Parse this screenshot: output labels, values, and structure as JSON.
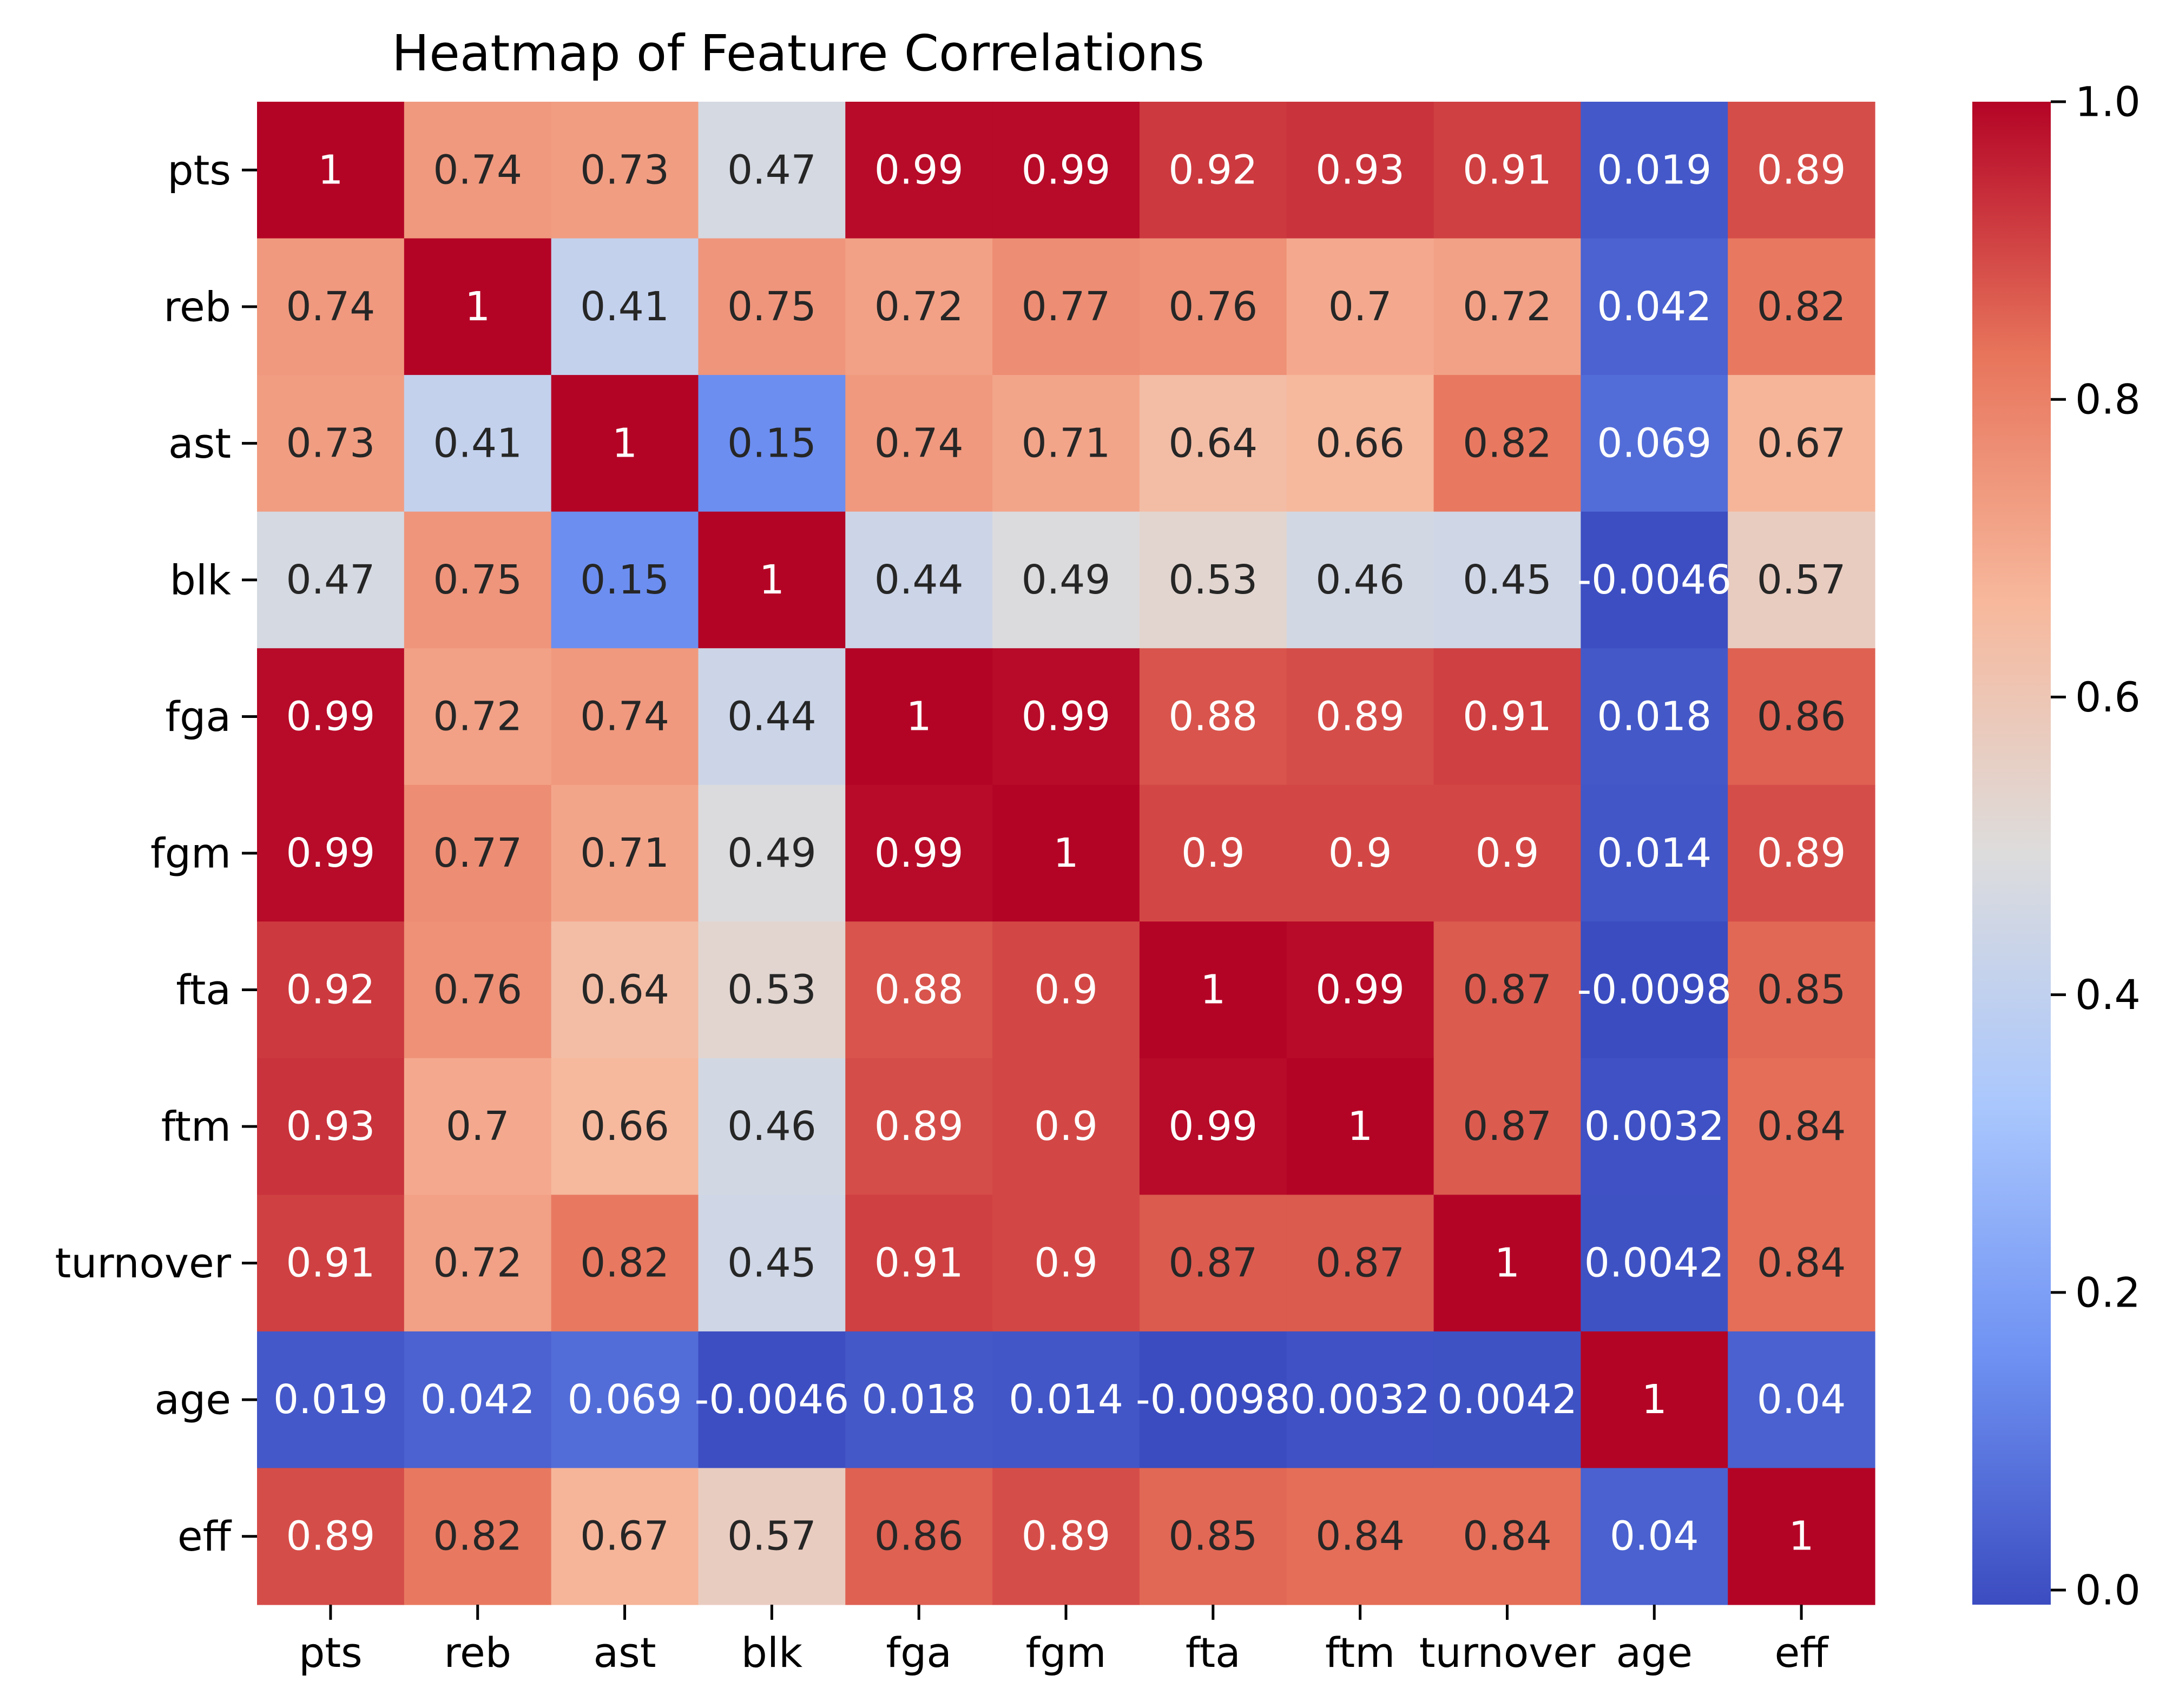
{
  "chart_data": {
    "type": "heatmap",
    "title": "Heatmap of Feature Correlations",
    "xlabel": "",
    "ylabel": "",
    "x_categories": [
      "pts",
      "reb",
      "ast",
      "blk",
      "fga",
      "fgm",
      "fta",
      "ftm",
      "turnover",
      "age",
      "eff"
    ],
    "y_categories": [
      "pts",
      "reb",
      "ast",
      "blk",
      "fga",
      "fgm",
      "fta",
      "ftm",
      "turnover",
      "age",
      "eff"
    ],
    "values": [
      [
        1,
        0.74,
        0.73,
        0.47,
        0.99,
        0.99,
        0.92,
        0.93,
        0.91,
        0.019,
        0.89
      ],
      [
        0.74,
        1,
        0.41,
        0.75,
        0.72,
        0.77,
        0.76,
        0.7,
        0.72,
        0.042,
        0.82
      ],
      [
        0.73,
        0.41,
        1,
        0.15,
        0.74,
        0.71,
        0.64,
        0.66,
        0.82,
        0.069,
        0.67
      ],
      [
        0.47,
        0.75,
        0.15,
        1,
        0.44,
        0.49,
        0.53,
        0.46,
        0.45,
        -0.0046,
        0.57
      ],
      [
        0.99,
        0.72,
        0.74,
        0.44,
        1,
        0.99,
        0.88,
        0.89,
        0.91,
        0.018,
        0.86
      ],
      [
        0.99,
        0.77,
        0.71,
        0.49,
        0.99,
        1,
        0.9,
        0.9,
        0.9,
        0.014,
        0.89
      ],
      [
        0.92,
        0.76,
        0.64,
        0.53,
        0.88,
        0.9,
        1,
        0.99,
        0.87,
        -0.0098,
        0.85
      ],
      [
        0.93,
        0.7,
        0.66,
        0.46,
        0.89,
        0.9,
        0.99,
        1,
        0.87,
        0.0032,
        0.84
      ],
      [
        0.91,
        0.72,
        0.82,
        0.45,
        0.91,
        0.9,
        0.87,
        0.87,
        1,
        0.0042,
        0.84
      ],
      [
        0.019,
        0.042,
        0.069,
        -0.0046,
        0.018,
        0.014,
        -0.0098,
        0.0032,
        0.0042,
        1,
        0.04
      ],
      [
        0.89,
        0.82,
        0.67,
        0.57,
        0.86,
        0.89,
        0.85,
        0.84,
        0.84,
        0.04,
        1
      ]
    ],
    "cell_labels": [
      [
        "1",
        "0.74",
        "0.73",
        "0.47",
        "0.99",
        "0.99",
        "0.92",
        "0.93",
        "0.91",
        "0.019",
        "0.89"
      ],
      [
        "0.74",
        "1",
        "0.41",
        "0.75",
        "0.72",
        "0.77",
        "0.76",
        "0.7",
        "0.72",
        "0.042",
        "0.82"
      ],
      [
        "0.73",
        "0.41",
        "1",
        "0.15",
        "0.74",
        "0.71",
        "0.64",
        "0.66",
        "0.82",
        "0.069",
        "0.67"
      ],
      [
        "0.47",
        "0.75",
        "0.15",
        "1",
        "0.44",
        "0.49",
        "0.53",
        "0.46",
        "0.45",
        "-0.0046",
        "0.57"
      ],
      [
        "0.99",
        "0.72",
        "0.74",
        "0.44",
        "1",
        "0.99",
        "0.88",
        "0.89",
        "0.91",
        "0.018",
        "0.86"
      ],
      [
        "0.99",
        "0.77",
        "0.71",
        "0.49",
        "0.99",
        "1",
        "0.9",
        "0.9",
        "0.9",
        "0.014",
        "0.89"
      ],
      [
        "0.92",
        "0.76",
        "0.64",
        "0.53",
        "0.88",
        "0.9",
        "1",
        "0.99",
        "0.87",
        "-0.0098",
        "0.85"
      ],
      [
        "0.93",
        "0.7",
        "0.66",
        "0.46",
        "0.89",
        "0.9",
        "0.99",
        "1",
        "0.87",
        "0.0032",
        "0.84"
      ],
      [
        "0.91",
        "0.72",
        "0.82",
        "0.45",
        "0.91",
        "0.9",
        "0.87",
        "0.87",
        "1",
        "0.0042",
        "0.84"
      ],
      [
        "0.019",
        "0.042",
        "0.069",
        "-0.0046",
        "0.018",
        "0.014",
        "-0.0098",
        "0.0032",
        "0.0042",
        "1",
        "0.04"
      ],
      [
        "0.89",
        "0.82",
        "0.67",
        "0.57",
        "0.86",
        "0.89",
        "0.85",
        "0.84",
        "0.84",
        "0.04",
        "1"
      ]
    ],
    "colormap": "coolwarm",
    "colormap_stops": [
      "#3b4cc0",
      "#6f92f3",
      "#aac7fd",
      "#dddcdc",
      "#f7b89c",
      "#e7745b",
      "#b40426"
    ],
    "color_range": [
      -0.0098,
      1
    ],
    "colorbar": {
      "ticks": [
        0,
        0.2,
        0.4,
        0.6,
        0.8,
        1.0
      ],
      "tick_labels": [
        "0.0",
        "0.2",
        "0.4",
        "0.6",
        "0.8",
        "1.0"
      ]
    },
    "grid": false,
    "legend": "colorbar-right"
  }
}
